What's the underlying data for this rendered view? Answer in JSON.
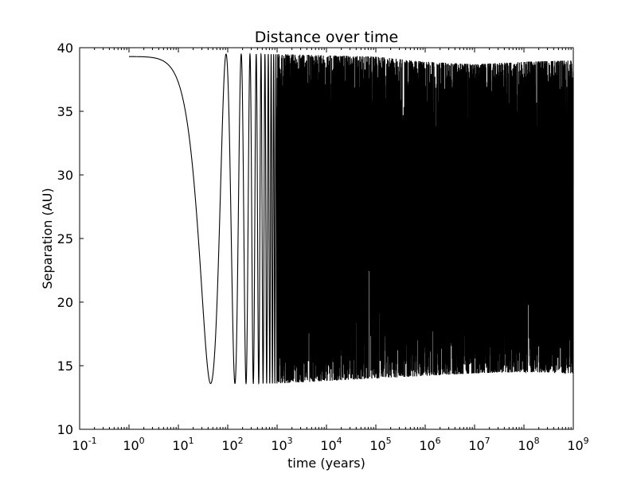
{
  "chart_data": {
    "type": "line",
    "title": "Distance over time",
    "xlabel": "time (years)",
    "ylabel": "Separation (AU)",
    "xscale": "log",
    "xlim": [
      0.1,
      1000000000
    ],
    "ylim": [
      10,
      40
    ],
    "xticks": [
      {
        "base": "10",
        "exp": "-1",
        "value": 0.1
      },
      {
        "base": "10",
        "exp": "0",
        "value": 1
      },
      {
        "base": "10",
        "exp": "1",
        "value": 10
      },
      {
        "base": "10",
        "exp": "2",
        "value": 100
      },
      {
        "base": "10",
        "exp": "3",
        "value": 1000
      },
      {
        "base": "10",
        "exp": "4",
        "value": 10000
      },
      {
        "base": "10",
        "exp": "5",
        "value": 100000
      },
      {
        "base": "10",
        "exp": "6",
        "value": 1000000
      },
      {
        "base": "10",
        "exp": "7",
        "value": 10000000
      },
      {
        "base": "10",
        "exp": "8",
        "value": 100000000
      },
      {
        "base": "10",
        "exp": "9",
        "value": 1000000000
      }
    ],
    "yticks": [
      "10",
      "15",
      "20",
      "25",
      "30",
      "35",
      "40"
    ],
    "grid": false,
    "legend": "none",
    "colors": {
      "line": "#000000",
      "axes": "#000000",
      "background": "#ffffff"
    },
    "series": [
      {
        "start": {
          "x": 1,
          "y": 39.3
        },
        "orbit": {
          "minimum": 13.6,
          "maximum": 39.5,
          "first_pericenter_year": 45,
          "first_apocenter_year": 93,
          "period_years": 95
        },
        "envelope_max": [
          {
            "x": 1000,
            "y": 39.5
          },
          {
            "x": 100000,
            "y": 39.3
          },
          {
            "x": 1000000,
            "y": 38.9
          },
          {
            "x": 10000000,
            "y": 38.7
          },
          {
            "x": 100000000,
            "y": 38.9
          },
          {
            "x": 1000000000,
            "y": 39.0
          }
        ],
        "envelope_min": [
          {
            "x": 1000,
            "y": 13.6
          },
          {
            "x": 10000,
            "y": 13.8
          },
          {
            "x": 100000,
            "y": 14.0
          },
          {
            "x": 1000000,
            "y": 14.2
          },
          {
            "x": 10000000,
            "y": 14.4
          },
          {
            "x": 100000000,
            "y": 14.5
          },
          {
            "x": 1000000000,
            "y": 14.4
          }
        ]
      }
    ]
  }
}
